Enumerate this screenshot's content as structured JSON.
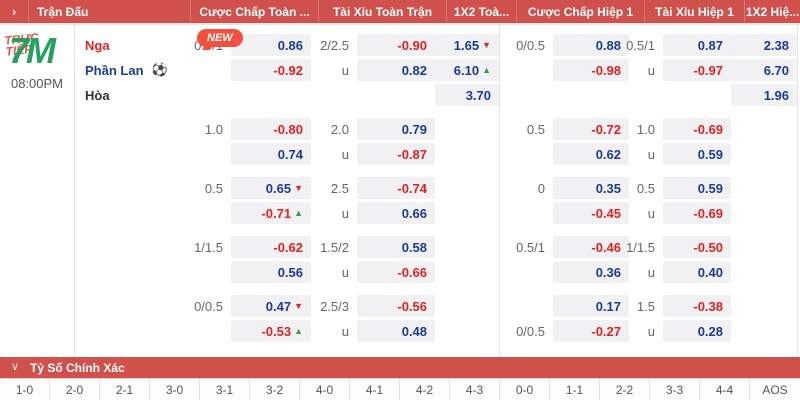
{
  "palette": {
    "header_red": "#d0504b",
    "value_red": "#e02222",
    "value_blue": "#1b3c8f",
    "up_green": "#3a9e3a",
    "box_bg": "#f1f1f3",
    "logo_green": "#25a05f",
    "live_red": "#e25555",
    "new_badge": "#f5503e"
  },
  "header": {
    "chevron": "›",
    "columns": [
      "Trận Đấu",
      "Cược Chấp Toàn ...",
      "Tài Xỉu Toàn Trận",
      "1X2 Toà...",
      "Cược Chấp Hiệp 1",
      "Tài Xỉu Hiệp 1",
      "1X2 Hiệ..."
    ]
  },
  "sidebar": {
    "logo": "7M",
    "live_line1": "TRỰC",
    "live_line2": "TIẾP",
    "time": "08:00PM"
  },
  "match": {
    "home": "Nga",
    "away": "Phần Lan",
    "draw": "Hòa",
    "ball_icon": "⚽",
    "new_badge": "NEW"
  },
  "odds": {
    "groups": [
      {
        "ft_hcp": {
          "l1_label": "0.5/1",
          "l1_val": "0.86",
          "l2_label": "",
          "l2_val": "-0.92"
        },
        "ft_ou": {
          "l1_label": "2/2.5",
          "l1_val": "-0.90",
          "l2_label": "u",
          "l2_val": "0.82"
        },
        "ft_1x2": {
          "v1": "1.65",
          "v1_arrow": "▼",
          "v2": "6.10",
          "v2_arrow": "▲",
          "v3": "3.70"
        },
        "h1_hcp": {
          "l1_label": "0/0.5",
          "l1_val": "0.88",
          "l2_label": "",
          "l2_val": "-0.98"
        },
        "h1_ou": {
          "l1_label": "0.5/1",
          "l1_val": "0.87",
          "l2_label": "u",
          "l2_val": "-0.97"
        },
        "h1_1x2": {
          "v1": "2.38",
          "v2": "6.70",
          "v3": "1.96"
        }
      },
      {
        "ft_hcp": {
          "l1_label": "1.0",
          "l1_val": "-0.80",
          "l2_label": "",
          "l2_val": "0.74"
        },
        "ft_ou": {
          "l1_label": "2.0",
          "l1_val": "0.79",
          "l2_label": "u",
          "l2_val": "-0.87"
        },
        "h1_hcp": {
          "l1_label": "0.5",
          "l1_val": "-0.72",
          "l2_label": "",
          "l2_val": "0.62"
        },
        "h1_ou": {
          "l1_label": "1.0",
          "l1_val": "-0.69",
          "l2_label": "u",
          "l2_val": "0.59"
        }
      },
      {
        "ft_hcp": {
          "l1_label": "0.5",
          "l1_val": "0.65",
          "l1_arrow": "▼",
          "l2_label": "",
          "l2_val": "-0.71",
          "l2_arrow": "▲"
        },
        "ft_ou": {
          "l1_label": "2.5",
          "l1_val": "-0.74",
          "l2_label": "u",
          "l2_val": "0.66"
        },
        "h1_hcp": {
          "l1_label": "0",
          "l1_val": "0.35",
          "l2_label": "",
          "l2_val": "-0.45"
        },
        "h1_ou": {
          "l1_label": "0.5",
          "l1_val": "0.59",
          "l2_label": "u",
          "l2_val": "-0.69"
        }
      },
      {
        "ft_hcp": {
          "l1_label": "1/1.5",
          "l1_val": "-0.62",
          "l2_label": "",
          "l2_val": "0.56"
        },
        "ft_ou": {
          "l1_label": "1.5/2",
          "l1_val": "0.58",
          "l2_label": "u",
          "l2_val": "-0.66"
        },
        "h1_hcp": {
          "l1_label": "0.5/1",
          "l1_val": "-0.46",
          "l2_label": "",
          "l2_val": "0.36"
        },
        "h1_ou": {
          "l1_label": "1/1.5",
          "l1_val": "-0.50",
          "l2_label": "u",
          "l2_val": "0.40"
        }
      },
      {
        "ft_hcp": {
          "l1_label": "0/0.5",
          "l1_val": "0.47",
          "l1_arrow": "▼",
          "l2_label": "",
          "l2_val": "-0.53",
          "l2_arrow": "▲"
        },
        "ft_ou": {
          "l1_label": "2.5/3",
          "l1_val": "-0.56",
          "l2_label": "u",
          "l2_val": "0.48"
        },
        "h1_hcp": {
          "l1_label": "",
          "l1_val": "0.17",
          "l2_label": "0/0.5",
          "l2_val": "-0.27"
        },
        "h1_ou": {
          "l1_label": "1.5",
          "l1_val": "-0.38",
          "l2_label": "u",
          "l2_val": "0.28"
        }
      }
    ]
  },
  "correct_score": {
    "title": "Tỷ Số Chính Xác",
    "chevron": "∨",
    "scores": [
      "1-0",
      "2-0",
      "2-1",
      "3-0",
      "3-1",
      "3-2",
      "4-0",
      "4-1",
      "4-2",
      "4-3",
      "0-0",
      "1-1",
      "2-2",
      "3-3",
      "4-4",
      "AOS"
    ]
  }
}
